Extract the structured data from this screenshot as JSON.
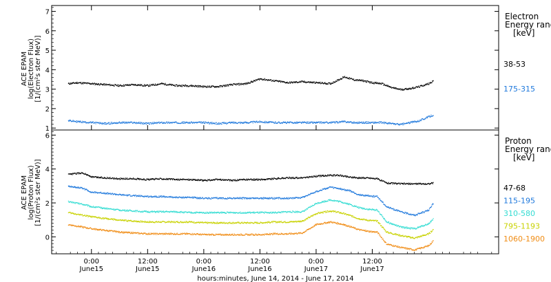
{
  "chart_data": [
    {
      "type": "scatter",
      "panel": "electron",
      "ylabel_lines": [
        "ACE EPAM",
        "log(Electron Flux)",
        "[1/(cm²s ster MeV)]"
      ],
      "ylim": [
        0.9,
        7.3
      ],
      "yticks": [
        1,
        2,
        3,
        4,
        5,
        6,
        7
      ],
      "legend_title_lines": [
        "Electron",
        "Energy ranges",
        "[keV]"
      ],
      "series": [
        {
          "name": "38-53",
          "color": "#000000",
          "x": [
            -10,
            -6,
            0,
            6,
            12,
            18,
            24,
            30,
            36,
            42,
            48,
            54,
            60,
            66,
            72,
            78,
            84,
            90,
            96,
            102,
            108,
            112,
            116,
            120,
            124,
            128,
            132,
            136,
            140,
            144,
            146
          ],
          "values": [
            3.3,
            3.35,
            3.3,
            3.25,
            3.2,
            3.25,
            3.2,
            3.3,
            3.2,
            3.2,
            3.15,
            3.15,
            3.25,
            3.3,
            3.55,
            3.45,
            3.35,
            3.4,
            3.35,
            3.3,
            3.65,
            3.5,
            3.45,
            3.35,
            3.3,
            3.1,
            3.0,
            3.05,
            3.15,
            3.3,
            3.45
          ]
        },
        {
          "name": "175-315",
          "color": "#1e78dc",
          "x": [
            -10,
            -6,
            0,
            6,
            12,
            18,
            24,
            30,
            36,
            42,
            48,
            54,
            60,
            66,
            72,
            78,
            84,
            90,
            96,
            102,
            108,
            112,
            116,
            120,
            124,
            128,
            132,
            136,
            140,
            144,
            146
          ],
          "values": [
            1.4,
            1.35,
            1.3,
            1.25,
            1.3,
            1.3,
            1.25,
            1.3,
            1.3,
            1.3,
            1.3,
            1.25,
            1.3,
            1.3,
            1.35,
            1.3,
            1.3,
            1.3,
            1.3,
            1.3,
            1.35,
            1.3,
            1.3,
            1.3,
            1.3,
            1.25,
            1.2,
            1.3,
            1.4,
            1.6,
            1.7
          ]
        }
      ]
    },
    {
      "type": "scatter",
      "panel": "proton",
      "ylabel_lines": [
        "ACE EPAM",
        "log(Proton Flux)",
        "[1/(cm²s ster MeV)]"
      ],
      "ylim": [
        -1.0,
        6.3
      ],
      "yticks": [
        0,
        2,
        4,
        6
      ],
      "legend_title_lines": [
        "Proton",
        "Energy ranges",
        "[keV]"
      ],
      "series": [
        {
          "name": "47-68",
          "color": "#000000",
          "x": [
            -10,
            -4,
            0,
            6,
            12,
            18,
            24,
            30,
            36,
            42,
            48,
            54,
            60,
            66,
            72,
            78,
            84,
            90,
            96,
            102,
            106,
            110,
            114,
            118,
            122,
            126,
            132,
            138,
            144,
            146
          ],
          "values": [
            3.7,
            3.8,
            3.55,
            3.5,
            3.45,
            3.45,
            3.4,
            3.45,
            3.4,
            3.4,
            3.35,
            3.4,
            3.35,
            3.4,
            3.4,
            3.45,
            3.5,
            3.5,
            3.6,
            3.65,
            3.65,
            3.55,
            3.5,
            3.5,
            3.45,
            3.2,
            3.15,
            3.15,
            3.15,
            3.2
          ]
        },
        {
          "name": "115-195",
          "color": "#1e78dc",
          "x": [
            -10,
            -4,
            0,
            6,
            12,
            18,
            24,
            30,
            36,
            42,
            48,
            54,
            60,
            66,
            72,
            78,
            84,
            90,
            96,
            102,
            106,
            110,
            114,
            118,
            122,
            126,
            132,
            138,
            144,
            146
          ],
          "values": [
            3.0,
            2.9,
            2.65,
            2.6,
            2.5,
            2.45,
            2.4,
            2.4,
            2.35,
            2.35,
            2.3,
            2.3,
            2.3,
            2.3,
            2.3,
            2.3,
            2.3,
            2.35,
            2.7,
            2.95,
            2.85,
            2.75,
            2.5,
            2.45,
            2.4,
            1.8,
            1.5,
            1.3,
            1.6,
            2.0
          ]
        },
        {
          "name": "310-580",
          "color": "#32dcd2",
          "x": [
            -10,
            -4,
            0,
            6,
            12,
            18,
            24,
            30,
            36,
            42,
            48,
            54,
            60,
            66,
            72,
            78,
            84,
            90,
            96,
            102,
            106,
            110,
            114,
            118,
            122,
            126,
            132,
            138,
            144,
            146
          ],
          "values": [
            2.1,
            1.95,
            1.8,
            1.7,
            1.6,
            1.55,
            1.5,
            1.5,
            1.5,
            1.45,
            1.45,
            1.45,
            1.45,
            1.45,
            1.45,
            1.45,
            1.5,
            1.5,
            2.0,
            2.2,
            2.1,
            1.95,
            1.75,
            1.65,
            1.6,
            0.9,
            0.6,
            0.5,
            0.8,
            1.1
          ]
        },
        {
          "name": "795-1193",
          "color": "#c8d200",
          "x": [
            -10,
            -4,
            0,
            6,
            12,
            18,
            24,
            30,
            36,
            42,
            48,
            54,
            60,
            66,
            72,
            78,
            84,
            90,
            96,
            102,
            106,
            110,
            114,
            118,
            122,
            126,
            132,
            138,
            144,
            146
          ],
          "values": [
            1.45,
            1.3,
            1.2,
            1.1,
            1.0,
            0.95,
            0.9,
            0.9,
            0.9,
            0.9,
            0.85,
            0.85,
            0.85,
            0.85,
            0.85,
            0.9,
            0.9,
            0.95,
            1.4,
            1.55,
            1.45,
            1.3,
            1.1,
            1.0,
            0.95,
            0.3,
            0.1,
            -0.05,
            0.2,
            0.45
          ]
        },
        {
          "name": "1060-1900",
          "color": "#f08c14",
          "x": [
            -10,
            -4,
            0,
            6,
            12,
            18,
            24,
            30,
            36,
            42,
            48,
            54,
            60,
            66,
            72,
            78,
            84,
            90,
            96,
            102,
            106,
            110,
            114,
            118,
            122,
            126,
            132,
            138,
            144,
            146
          ],
          "values": [
            0.75,
            0.6,
            0.5,
            0.4,
            0.3,
            0.25,
            0.2,
            0.2,
            0.2,
            0.2,
            0.15,
            0.15,
            0.15,
            0.15,
            0.15,
            0.2,
            0.2,
            0.25,
            0.75,
            0.9,
            0.8,
            0.65,
            0.45,
            0.35,
            0.3,
            -0.4,
            -0.6,
            -0.75,
            -0.5,
            -0.2
          ]
        }
      ]
    }
  ],
  "x_axis": {
    "range": [
      -17,
      174
    ],
    "ticks": [
      {
        "x": 0,
        "time": "0:00",
        "date": "June15"
      },
      {
        "x": 24,
        "time": "12:00",
        "date": "June15"
      },
      {
        "x": 48,
        "time": "0:00",
        "date": "June16"
      },
      {
        "x": 72,
        "time": "12:00",
        "date": "June16"
      },
      {
        "x": 96,
        "time": "0:00",
        "date": "June17"
      },
      {
        "x": 120,
        "time": "12:00",
        "date": "June17"
      }
    ],
    "label": "hours:minutes, June 14, 2014 - June 17, 2014"
  }
}
